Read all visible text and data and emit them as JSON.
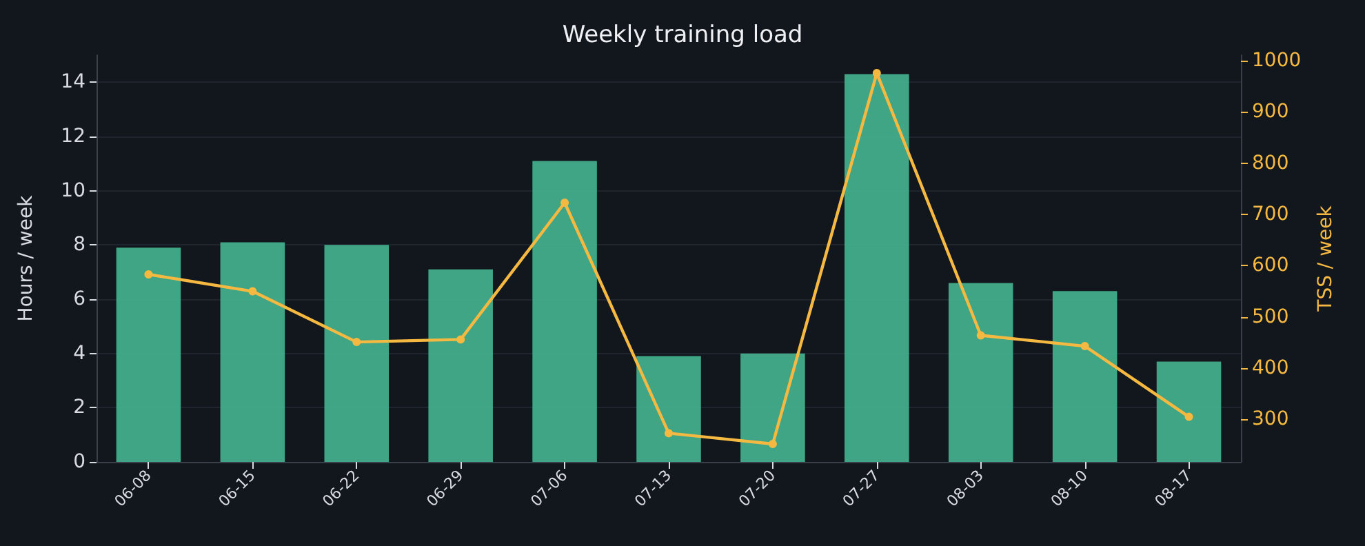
{
  "chart_data": {
    "type": "bar",
    "title": "Weekly training load",
    "ylabel": "Hours / week",
    "y2label": "TSS / week",
    "categories": [
      "06-08",
      "06-15",
      "06-22",
      "06-29",
      "07-06",
      "07-13",
      "07-20",
      "07-27",
      "08-03",
      "08-10",
      "08-17"
    ],
    "series": [
      {
        "color": "#45b591",
        "values": [
          7.9,
          8.1,
          8.0,
          7.1,
          11.1,
          3.9,
          4.0,
          14.3,
          6.6,
          6.3,
          3.7
        ]
      },
      {
        "type": "line",
        "axis": "y2",
        "color": "#f5b942",
        "values": [
          583,
          550,
          451,
          456,
          723,
          273,
          252,
          976,
          464,
          443,
          305
        ]
      }
    ],
    "ylim": [
      0,
      15
    ],
    "yticks": [
      0,
      2,
      4,
      6,
      8,
      10,
      12,
      14
    ],
    "y2lim": [
      217,
      1011
    ],
    "y2ticks": [
      300,
      400,
      500,
      600,
      700,
      800,
      900,
      1000
    ],
    "grid": "y",
    "marker": "circle",
    "line_style": "solid"
  }
}
